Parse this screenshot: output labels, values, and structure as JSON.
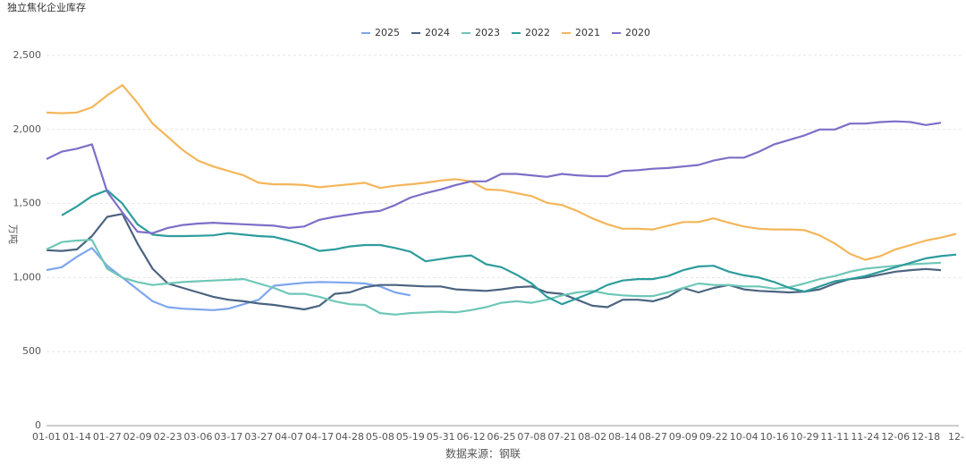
{
  "chart_data": {
    "type": "line",
    "title": "独立焦化企业库存",
    "y_label": "万吨",
    "x_label": "数据来源：钢联",
    "categories": [
      "01-01",
      null,
      "01-14",
      null,
      "01-27",
      null,
      "02-09",
      null,
      "02-23",
      null,
      "03-06",
      null,
      "03-17",
      null,
      "03-27",
      null,
      "04-07",
      null,
      "04-17",
      null,
      "04-28",
      null,
      "05-08",
      null,
      "05-19",
      null,
      "05-31",
      null,
      "06-12",
      null,
      "06-25",
      null,
      "07-08",
      null,
      "07-21",
      null,
      "08-02",
      null,
      "08-14",
      null,
      "08-27",
      null,
      "09-09",
      null,
      "09-22",
      null,
      "10-04",
      null,
      "10-16",
      null,
      "10-29",
      null,
      "11-11",
      null,
      "11-24",
      null,
      "12-06",
      null,
      "12-18",
      null,
      "12-"
    ],
    "ylim": [
      0,
      2500
    ],
    "yticks": [
      0,
      500,
      {
        "value": 1000,
        "label": "1,000"
      },
      {
        "value": 1500,
        "label": "1,500"
      },
      {
        "value": 2000,
        "label": "2,000"
      },
      {
        "value": 2500,
        "label": "2,500"
      }
    ],
    "grid": true,
    "series": [
      {
        "name": "2025",
        "color": "#7ea6ee",
        "values": [
          1050,
          1070,
          1140,
          1200,
          1080,
          1000,
          920,
          840,
          800,
          790,
          785,
          780,
          790,
          820,
          850,
          945,
          955,
          965,
          970,
          968,
          965,
          960,
          940,
          900,
          880,
          null,
          null,
          null,
          null,
          null,
          null,
          null,
          null,
          null,
          null,
          null,
          null,
          null,
          null,
          null,
          null,
          null,
          null,
          null,
          null,
          null,
          null,
          null,
          null,
          null,
          null,
          null,
          null,
          null,
          null,
          null,
          null,
          null,
          null,
          null,
          null
        ]
      },
      {
        "name": "2024",
        "color": "#4b6480",
        "values": [
          1185,
          1180,
          1190,
          1280,
          1410,
          1430,
          1230,
          1060,
          960,
          930,
          900,
          870,
          850,
          840,
          825,
          815,
          800,
          785,
          810,
          890,
          900,
          935,
          950,
          950,
          945,
          940,
          940,
          920,
          915,
          910,
          920,
          935,
          940,
          900,
          890,
          850,
          810,
          800,
          850,
          850,
          840,
          870,
          930,
          900,
          930,
          950,
          920,
          910,
          905,
          900,
          905,
          920,
          960,
          990,
          1000,
          1020,
          1040,
          1050,
          1058,
          1050,
          null
        ]
      },
      {
        "name": "2023",
        "color": "#6ec7b7",
        "values": [
          1190,
          1240,
          1250,
          1255,
          1060,
          1000,
          970,
          950,
          960,
          970,
          975,
          980,
          985,
          990,
          960,
          930,
          890,
          890,
          870,
          840,
          820,
          815,
          760,
          750,
          760,
          765,
          770,
          765,
          780,
          800,
          830,
          840,
          830,
          850,
          880,
          900,
          910,
          890,
          880,
          875,
          875,
          900,
          930,
          960,
          950,
          950,
          940,
          940,
          925,
          935,
          960,
          990,
          1010,
          1040,
          1060,
          1070,
          1080,
          1090,
          1095,
          1100,
          null
        ]
      },
      {
        "name": "2022",
        "color": "#2e9c9c",
        "values": [
          null,
          1420,
          1480,
          1550,
          1590,
          1500,
          1360,
          1290,
          1280,
          1280,
          1282,
          1285,
          1300,
          1290,
          1280,
          1275,
          1250,
          1220,
          1180,
          1190,
          1210,
          1220,
          1220,
          1200,
          1175,
          1110,
          1125,
          1140,
          1150,
          1090,
          1070,
          1020,
          960,
          870,
          820,
          860,
          900,
          950,
          980,
          990,
          990,
          1010,
          1050,
          1075,
          1080,
          1040,
          1015,
          1000,
          970,
          930,
          905,
          940,
          975,
          990,
          1010,
          1040,
          1070,
          1100,
          1130,
          1145,
          1155
        ]
      },
      {
        "name": "2021",
        "color": "#f4b65a",
        "values": [
          2115,
          2110,
          2115,
          2150,
          2230,
          2300,
          2180,
          2040,
          1950,
          1860,
          1790,
          1750,
          1720,
          1690,
          1640,
          1630,
          1630,
          1625,
          1610,
          1620,
          1630,
          1640,
          1605,
          1620,
          1630,
          1640,
          1655,
          1665,
          1650,
          1595,
          1590,
          1570,
          1550,
          1505,
          1490,
          1450,
          1400,
          1360,
          1330,
          1330,
          1325,
          1350,
          1375,
          1375,
          1400,
          1370,
          1345,
          1330,
          1325,
          1325,
          1320,
          1285,
          1230,
          1160,
          1120,
          1145,
          1190,
          1220,
          1250,
          1270,
          1295
        ]
      },
      {
        "name": "2020",
        "color": "#7e6ec7",
        "values": [
          1800,
          1850,
          1870,
          1900,
          1580,
          1440,
          1310,
          1300,
          1335,
          1355,
          1365,
          1370,
          1365,
          1360,
          1355,
          1350,
          1335,
          1345,
          1390,
          1410,
          1425,
          1440,
          1450,
          1490,
          1540,
          1570,
          1595,
          1625,
          1650,
          1650,
          1700,
          1700,
          1690,
          1680,
          1700,
          1690,
          1685,
          1685,
          1720,
          1725,
          1735,
          1740,
          1750,
          1760,
          1790,
          1810,
          1810,
          1850,
          1900,
          1930,
          1960,
          2000,
          2000,
          2040,
          2040,
          2050,
          2055,
          2050,
          2030,
          2045,
          null
        ]
      }
    ]
  }
}
